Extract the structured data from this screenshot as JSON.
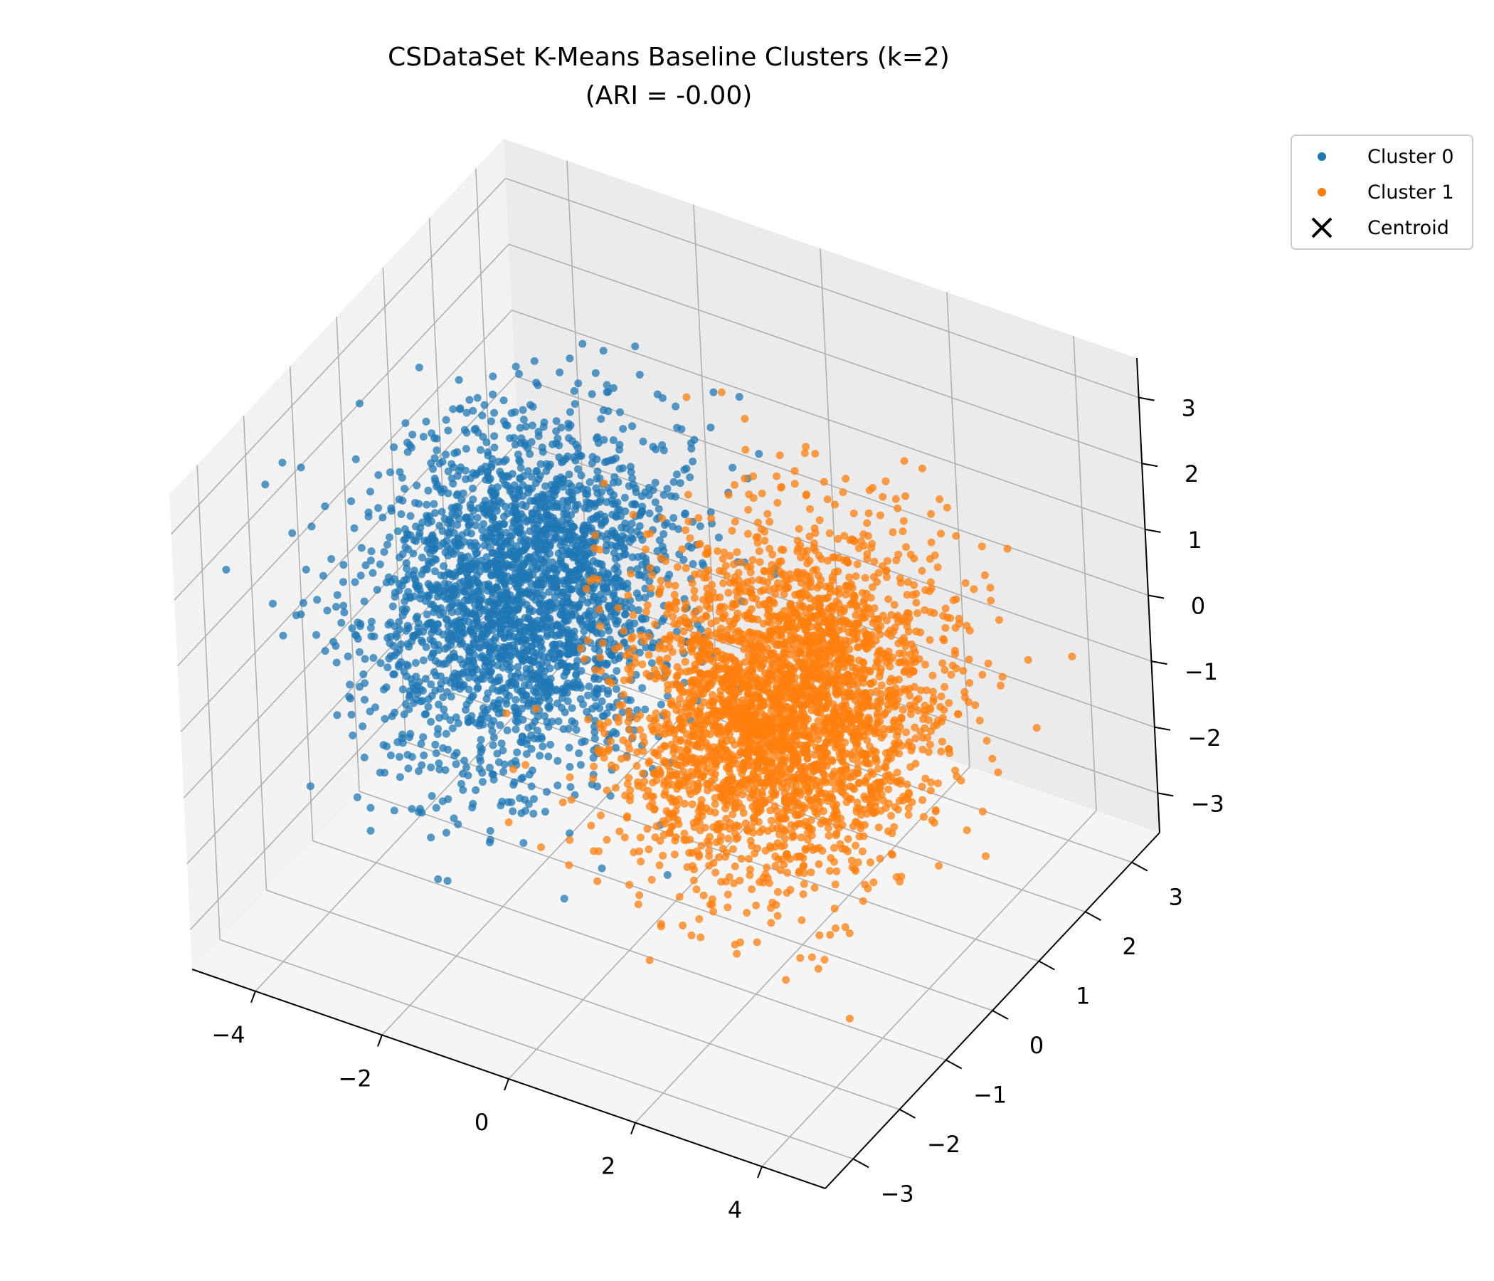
{
  "chart_data": {
    "type": "scatter",
    "title": "CSDataSet K-Means Baseline Clusters (k=2)",
    "subtitle": "(ARI = -0.00)",
    "legend_placement": "upper-right-outside",
    "grid": true,
    "axes": {
      "x": {
        "ticks": [
          "−4",
          "−2",
          "0",
          "2",
          "4"
        ],
        "range": [
          -5,
          5
        ]
      },
      "y": {
        "ticks": [
          "−3",
          "−2",
          "−1",
          "0",
          "1",
          "2",
          "3"
        ],
        "range": [
          -3.6,
          3.6
        ]
      },
      "z": {
        "ticks": [
          "−3",
          "−2",
          "−1",
          "0",
          "1",
          "2",
          "3"
        ],
        "range": [
          -3.6,
          3.6
        ]
      }
    },
    "series": [
      {
        "name": "Cluster 0",
        "color": "#1f77b4",
        "center": [
          -2.2,
          0.0,
          0.3
        ],
        "spread": [
          1.0,
          1.0,
          1.0
        ],
        "n": 2600
      },
      {
        "name": "Cluster 1",
        "color": "#ff7f0e",
        "center": [
          1.8,
          0.1,
          -0.1
        ],
        "spread": [
          1.0,
          1.0,
          1.0
        ],
        "n": 3200
      }
    ],
    "centroid_legend": {
      "name": "Centroid",
      "marker": "x",
      "color": "#000000"
    }
  }
}
